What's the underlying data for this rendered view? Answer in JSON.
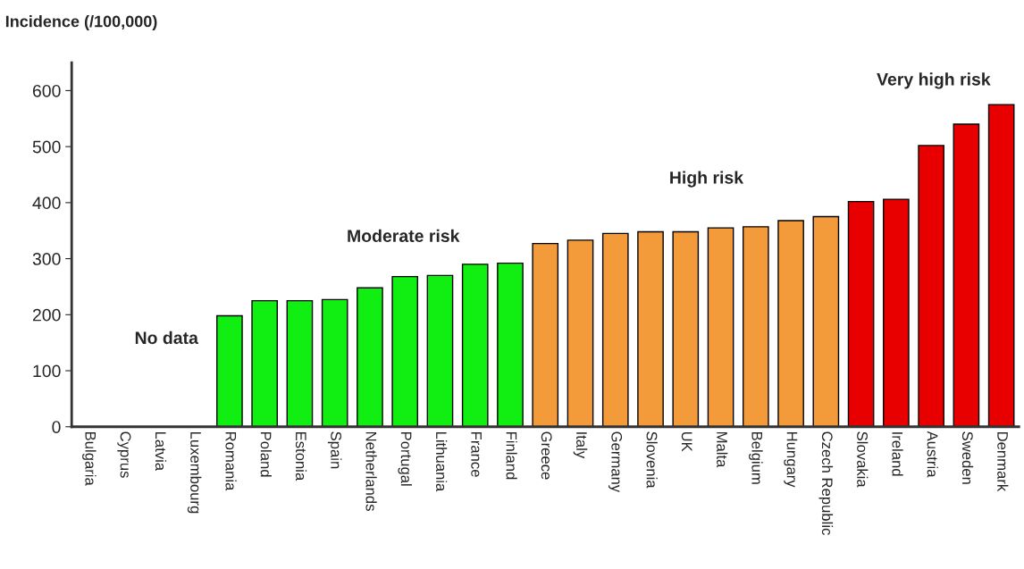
{
  "chart_data": {
    "type": "bar",
    "ylabel": "Incidence (/100,000)",
    "categories": [
      "Bulgaria",
      "Cyprus",
      "Latvia",
      "Luxembourg",
      "Romania",
      "Poland",
      "Estonia",
      "Spain",
      "Netherlands",
      "Portugal",
      "Lithuania",
      "France",
      "Finland",
      "Greece",
      "Italy",
      "Germany",
      "Slovenia",
      "UK",
      "Malta",
      "Belgium",
      "Hungary",
      "Czech Republic",
      "Slovakia",
      "Ireland",
      "Austria",
      "Sweden",
      "Denmark"
    ],
    "values": [
      null,
      null,
      null,
      null,
      198,
      225,
      225,
      227,
      248,
      268,
      270,
      290,
      292,
      327,
      333,
      345,
      348,
      348,
      355,
      357,
      368,
      375,
      402,
      406,
      502,
      540,
      575
    ],
    "colors": [
      "#11ee11",
      "#11ee11",
      "#11ee11",
      "#11ee11",
      "#11ee11",
      "#11ee11",
      "#11ee11",
      "#11ee11",
      "#11ee11",
      "#11ee11",
      "#11ee11",
      "#11ee11",
      "#11ee11",
      "#f39a3a",
      "#f39a3a",
      "#f39a3a",
      "#f39a3a",
      "#f39a3a",
      "#f39a3a",
      "#f39a3a",
      "#f39a3a",
      "#f39a3a",
      "#e80000",
      "#e80000",
      "#e80000",
      "#e80000",
      "#e80000"
    ],
    "ylim": [
      0,
      650
    ],
    "yticks": [
      0,
      100,
      200,
      300,
      400,
      500,
      600
    ],
    "grid": false,
    "legend": false,
    "annotations": [
      "No data",
      "Moderate risk",
      "High risk",
      "Very high risk"
    ]
  }
}
